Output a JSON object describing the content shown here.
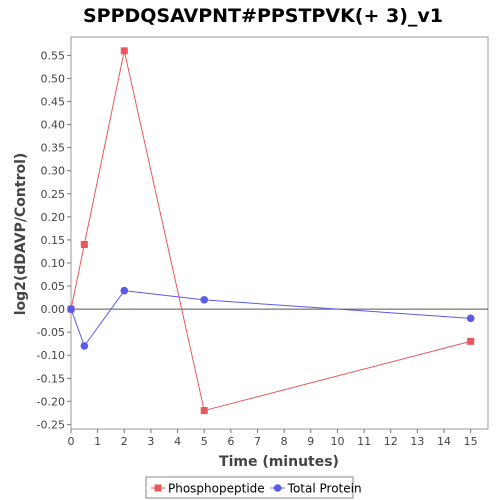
{
  "chart_data": {
    "type": "line",
    "title": "SPPDQSAVPNT#PPSTPVK(+ 3)_v1",
    "xlabel": "Time (minutes)",
    "ylabel": "log2(dDAVP/Control)",
    "xlim": [
      0,
      15.65
    ],
    "ylim": [
      -0.26,
      0.59
    ],
    "x_ticks": [
      0,
      1,
      2,
      3,
      4,
      5,
      6,
      7,
      8,
      9,
      10,
      11,
      12,
      13,
      14,
      15
    ],
    "y_ticks": [
      -0.25,
      -0.2,
      -0.15,
      -0.1,
      -0.05,
      0.0,
      0.05,
      0.1,
      0.15,
      0.2,
      0.25,
      0.3,
      0.35,
      0.4,
      0.45,
      0.5,
      0.55
    ],
    "y_tick_labels": [
      "-0.25",
      "-0.20",
      "-0.15",
      "-0.10",
      "-0.05",
      "0.00",
      "0.05",
      "0.10",
      "0.15",
      "0.20",
      "0.25",
      "0.30",
      "0.35",
      "0.40",
      "0.45",
      "0.50",
      "0.55"
    ],
    "zero_line": true,
    "grid": false,
    "legend_position": "bottom",
    "series": [
      {
        "name": "Phosphopeptide",
        "color": "#e8575a",
        "marker": "square",
        "x": [
          0,
          0.5,
          2,
          5,
          15
        ],
        "y": [
          0.0,
          0.14,
          0.56,
          -0.22,
          -0.07
        ]
      },
      {
        "name": "Total Protein",
        "color": "#5a5ae8",
        "marker": "circle",
        "x": [
          0,
          0.5,
          2,
          5,
          15
        ],
        "y": [
          0.0,
          -0.08,
          0.04,
          0.02,
          -0.02
        ]
      }
    ]
  }
}
